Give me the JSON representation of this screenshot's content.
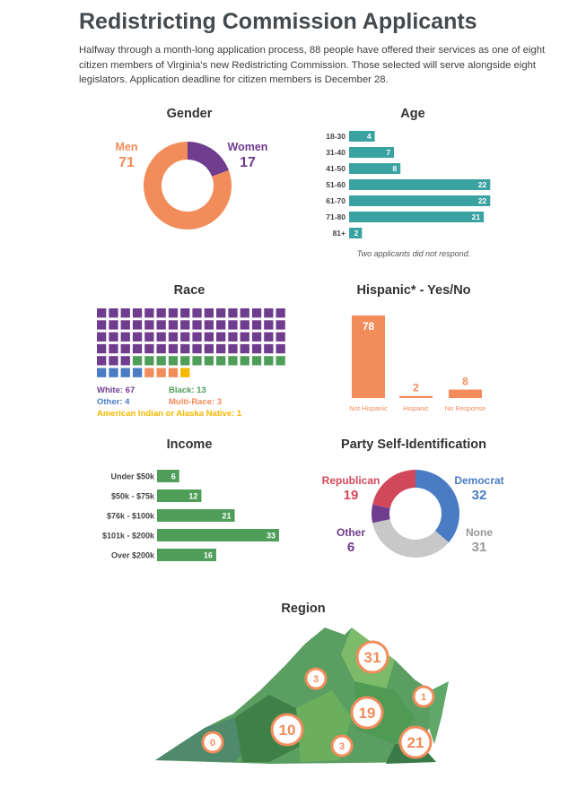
{
  "title": "Redistricting Commission Applicants",
  "intro": "Halfway through a month-long application process, 88 people have offered their services as one of eight citizen members of Virginia's new Redistricting Commission. Those selected will serve alongside eight legislators. Application deadline for citizen members is December 28.",
  "colors": {
    "orange": "#f28c5b",
    "purple": "#6f3c8e",
    "teal": "#3aa3a2",
    "green": "#4e9e5a",
    "blue": "#4a7cc4",
    "red": "#d1485b",
    "gray": "#c8c8c8",
    "yellow": "#f5b800",
    "heading": "#444a4e"
  },
  "chart_data": [
    {
      "type": "pie",
      "title": "Gender",
      "series": [
        {
          "name": "Men",
          "value": 71,
          "color": "#f28c5b"
        },
        {
          "name": "Women",
          "value": 17,
          "color": "#6f3c8e"
        }
      ]
    },
    {
      "type": "bar",
      "title": "Age",
      "categories": [
        "18-30",
        "31-40",
        "41-50",
        "51-60",
        "61-70",
        "71-80",
        "81+"
      ],
      "values": [
        4,
        7,
        8,
        22,
        22,
        21,
        2
      ],
      "note": "Two applicants did not respond.",
      "color": "#3aa3a2"
    },
    {
      "type": "waffle",
      "title": "Race",
      "series": [
        {
          "name": "White",
          "value": 67,
          "label": "White: 67",
          "color": "#6f3c8e"
        },
        {
          "name": "Black",
          "value": 13,
          "label": "Black: 13",
          "color": "#4e9e5a"
        },
        {
          "name": "Other",
          "value": 4,
          "label": "Other: 4",
          "color": "#4a7cc4"
        },
        {
          "name": "Multi-Race",
          "value": 3,
          "label": "Multi-Race: 3",
          "color": "#f28c5b"
        },
        {
          "name": "American Indian or Alaska Native",
          "value": 1,
          "label": "American Indian or Alaska Native: 1",
          "color": "#f5b800"
        }
      ]
    },
    {
      "type": "bar",
      "title": "Hispanic* - Yes/No",
      "categories": [
        "Not Hispanic",
        "Hispanic",
        "No Response"
      ],
      "values": [
        78,
        2,
        8
      ],
      "color": "#f28c5b"
    },
    {
      "type": "bar",
      "title": "Income",
      "categories": [
        "Under $50k",
        "$50k - $75k",
        "$76k - $100k",
        "$101k - $200k",
        "Over $200k"
      ],
      "values": [
        6,
        12,
        21,
        33,
        16
      ],
      "color": "#4e9e5a"
    },
    {
      "type": "pie",
      "title": "Party Self-Identification",
      "series": [
        {
          "name": "Democrat",
          "value": 32,
          "color": "#4a7cc4"
        },
        {
          "name": "None",
          "value": 31,
          "color": "#c8c8c8"
        },
        {
          "name": "Other",
          "value": 6,
          "color": "#6f3c8e"
        },
        {
          "name": "Republican",
          "value": 19,
          "color": "#d1485b"
        }
      ]
    },
    {
      "type": "map",
      "title": "Region",
      "values": [
        0,
        10,
        3,
        3,
        19,
        31,
        1,
        21
      ]
    }
  ]
}
